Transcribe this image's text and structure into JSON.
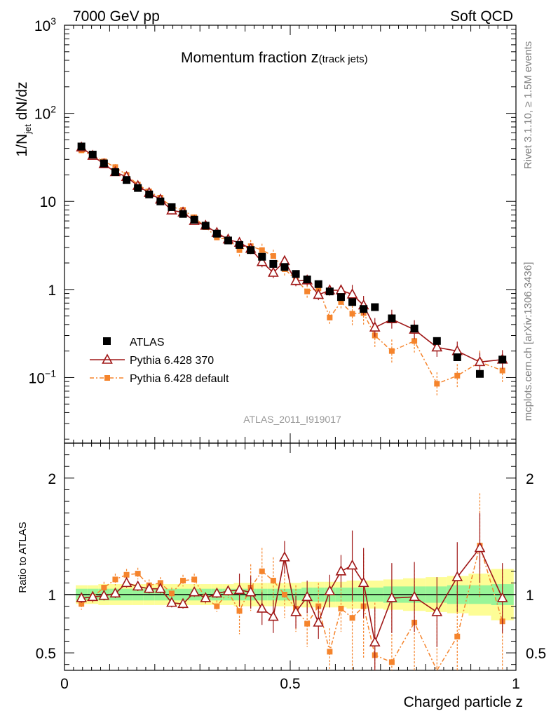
{
  "header": {
    "left": "7000 GeV pp",
    "right": "Soft QCD"
  },
  "side_labels": {
    "rivet": "Rivet 3.1.10, ≥ 1.5M events",
    "mcplots": "mcplots.cern.ch [arXiv:1306.3436]"
  },
  "chart_data": [
    {
      "type": "scatter",
      "panel": "main",
      "title": "Momentum fraction z(track jets)",
      "title_main": "Momentum fraction ",
      "title_var": "z",
      "title_sub": "(track jets)",
      "ylabel": "1/N_jet dN/dz",
      "ylabel_parts": {
        "a": "1/N",
        "sub": "jet",
        "b": " dN/dz"
      },
      "yscale": "log",
      "ylim": [
        0.018,
        1000
      ],
      "xlim": [
        0,
        1
      ],
      "yticks": [
        {
          "v": 1000,
          "base": "10",
          "exp": "3"
        },
        {
          "v": 100,
          "base": "10",
          "exp": "2"
        },
        {
          "v": 10,
          "label": "10"
        },
        {
          "v": 1,
          "label": "1"
        },
        {
          "v": 0.1,
          "base": "10",
          "exp": "−1"
        }
      ],
      "watermark": "ATLAS_2011_I919017",
      "legend_position": "lower-left",
      "legend": [
        "ATLAS",
        "Pythia 6.428 370",
        "Pythia 6.428 default"
      ],
      "x": [
        0.0375,
        0.0625,
        0.0875,
        0.1125,
        0.1375,
        0.1625,
        0.1875,
        0.2125,
        0.2375,
        0.2625,
        0.2875,
        0.3125,
        0.3375,
        0.3625,
        0.3875,
        0.4125,
        0.4375,
        0.4625,
        0.4875,
        0.5125,
        0.5375,
        0.5625,
        0.5875,
        0.6125,
        0.6375,
        0.6625,
        0.6875,
        0.725,
        0.775,
        0.825,
        0.87,
        0.92,
        0.97
      ],
      "series": [
        {
          "name": "ATLAS",
          "values": [
            42,
            34,
            27,
            21.5,
            17.5,
            14.2,
            12,
            10,
            8.6,
            7.2,
            6.2,
            5.3,
            4.3,
            3.6,
            3.2,
            2.8,
            2.35,
            1.95,
            1.8,
            1.5,
            1.3,
            1.15,
            0.95,
            0.82,
            0.72,
            0.6,
            0.63,
            0.47,
            0.36,
            0.26,
            0.17,
            0.11,
            0.16
          ]
        },
        {
          "name": "Pythia 6.428 370",
          "values": [
            41,
            33,
            26.5,
            21.5,
            19,
            15,
            12.5,
            10.5,
            7.9,
            7.5,
            6.0,
            5.3,
            4.4,
            3.7,
            3.4,
            2.9,
            2.05,
            1.55,
            2.1,
            1.25,
            1.27,
            0.87,
            0.98,
            0.98,
            0.88,
            0.66,
            0.37,
            0.46,
            0.35,
            0.22,
            0.2,
            0.15,
            0.16
          ]
        },
        {
          "name": "Pythia 6.428 default",
          "values": [
            38,
            33,
            28.5,
            24.5,
            20,
            15.5,
            13,
            11,
            8.7,
            8.0,
            6.6,
            5.1,
            3.9,
            3.7,
            2.8,
            3.1,
            2.8,
            2.4,
            1.7,
            1.3,
            0.95,
            1.03,
            0.48,
            0.72,
            0.53,
            0.54,
            0.3,
            0.2,
            0.26,
            0.085,
            0.105,
            0.15,
            0.12
          ]
        }
      ]
    },
    {
      "type": "scatter",
      "panel": "ratio",
      "ylabel": "Ratio to ATLAS",
      "xlabel": "Charged particle z",
      "xlim": [
        0,
        1
      ],
      "ylim": [
        0.35,
        2.3
      ],
      "yticks": [
        0.5,
        1,
        2
      ],
      "xticks": [
        0,
        0.5,
        1
      ],
      "band_inner_halfwidth": [
        0.05,
        0.05,
        0.05,
        0.05,
        0.05,
        0.05,
        0.05,
        0.05,
        0.05,
        0.05,
        0.05,
        0.05,
        0.05,
        0.05,
        0.05,
        0.05,
        0.05,
        0.05,
        0.05,
        0.05,
        0.06,
        0.06,
        0.06,
        0.06,
        0.06,
        0.06,
        0.06,
        0.07,
        0.07,
        0.07,
        0.08,
        0.08,
        0.09
      ],
      "band_outer_halfwidth": [
        0.08,
        0.08,
        0.09,
        0.09,
        0.09,
        0.09,
        0.09,
        0.09,
        0.09,
        0.09,
        0.09,
        0.09,
        0.09,
        0.09,
        0.1,
        0.1,
        0.1,
        0.1,
        0.1,
        0.1,
        0.11,
        0.11,
        0.11,
        0.11,
        0.12,
        0.12,
        0.12,
        0.13,
        0.14,
        0.15,
        0.16,
        0.18,
        0.22
      ],
      "series": [
        {
          "name": "Pythia 6.428 370",
          "values": [
            0.97,
            0.98,
            0.99,
            1.01,
            1.1,
            1.07,
            1.05,
            1.05,
            0.93,
            0.92,
            1.02,
            0.97,
            1.01,
            1.03,
            1.04,
            1.02,
            0.88,
            0.81,
            1.32,
            0.85,
            0.98,
            0.76,
            1.03,
            1.2,
            1.25,
            1.1,
            0.59,
            0.97,
            0.98,
            0.85,
            1.15,
            1.4,
            0.97
          ]
        },
        {
          "name": "Pythia 6.428 default",
          "values": [
            0.92,
            0.98,
            1.06,
            1.13,
            1.17,
            1.18,
            1.08,
            1.1,
            1.01,
            1.12,
            1.13,
            0.97,
            0.9,
            1.02,
            0.86,
            1.06,
            1.2,
            1.12,
            1.0,
            0.88,
            0.75,
            0.9,
            0.51,
            0.88,
            0.8,
            0.9,
            0.48,
            0.42,
            0.76,
            0.33,
            0.64,
            1.42,
            0.77
          ]
        }
      ]
    }
  ]
}
